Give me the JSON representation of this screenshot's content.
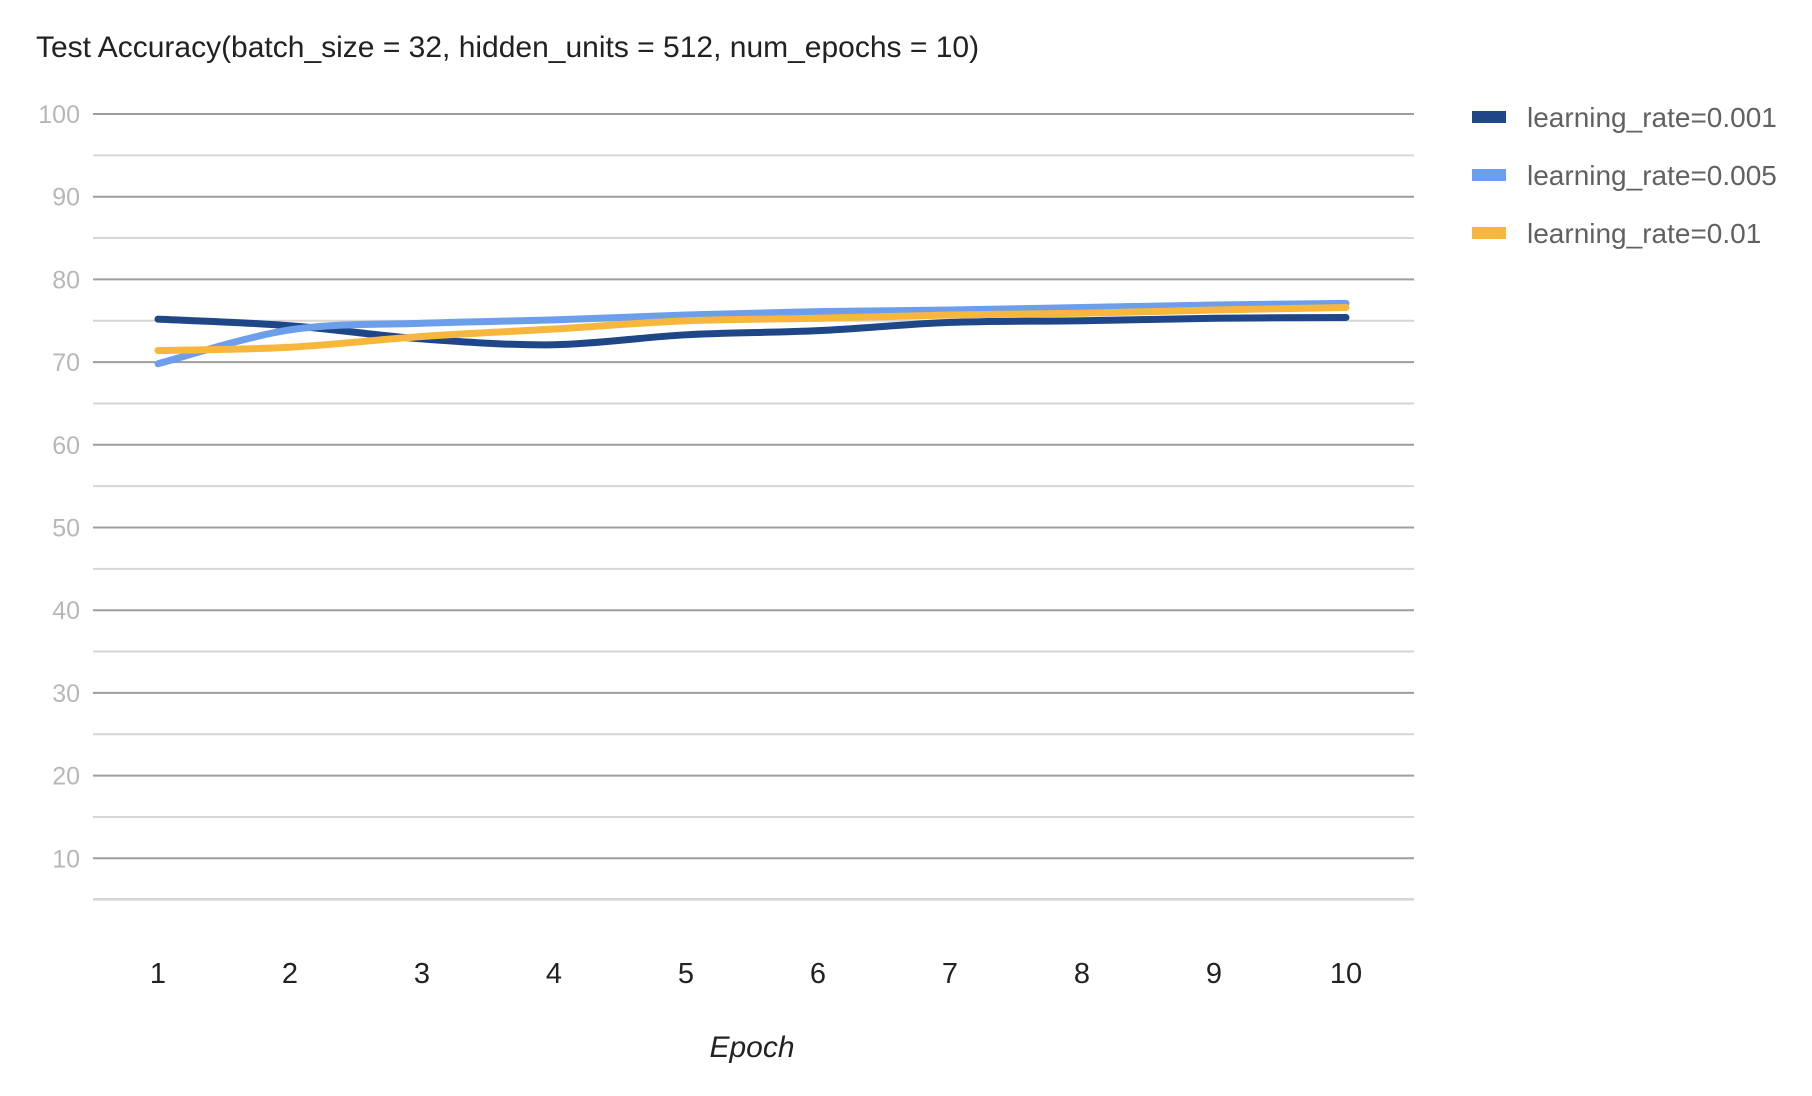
{
  "chart_data": {
    "type": "line",
    "title": "Test Accuracy(batch_size = 32, hidden_units = 512, num_epochs = 10)",
    "xlabel": "Epoch",
    "ylabel": "",
    "x": [
      1,
      2,
      3,
      4,
      5,
      6,
      7,
      8,
      9,
      10
    ],
    "x_tick_labels": [
      "1",
      "2",
      "3",
      "4",
      "5",
      "6",
      "7",
      "8",
      "9",
      "10"
    ],
    "y_tick_labels": [
      "10",
      "20",
      "30",
      "40",
      "50",
      "60",
      "70",
      "80",
      "90",
      "100"
    ],
    "ylim": [
      0,
      100
    ],
    "grid": true,
    "legend_position": "right",
    "series": [
      {
        "name": "learning_rate=0.001",
        "color": "#1f4788",
        "values": [
          75.2,
          74.4,
          72.8,
          72.1,
          73.3,
          73.8,
          74.8,
          75.0,
          75.3,
          75.4
        ]
      },
      {
        "name": "learning_rate=0.005",
        "color": "#6d9eeb",
        "values": [
          69.8,
          73.9,
          74.7,
          75.1,
          75.7,
          76.1,
          76.3,
          76.6,
          76.9,
          77.1
        ]
      },
      {
        "name": "learning_rate=0.01",
        "color": "#f6b73c",
        "values": [
          71.4,
          71.8,
          73.1,
          74.0,
          75.0,
          75.3,
          75.7,
          75.9,
          76.3,
          76.6
        ]
      }
    ]
  }
}
